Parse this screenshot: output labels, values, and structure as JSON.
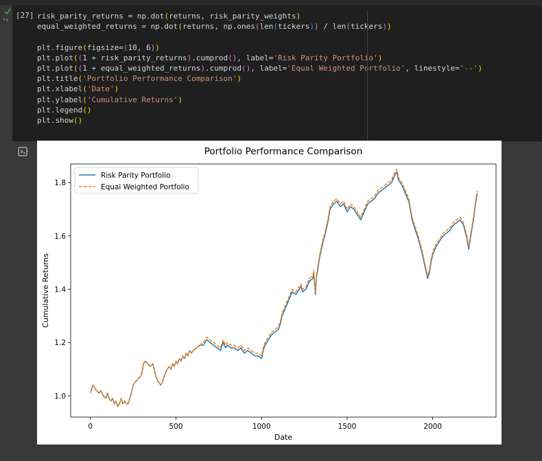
{
  "cell": {
    "execution_count": "[27]",
    "code_lines": [
      [
        {
          "t": "risk_parity_returns = np.dot",
          "c": ""
        },
        {
          "t": "(",
          "c": "p1"
        },
        {
          "t": "returns, risk_parity_weights",
          "c": ""
        },
        {
          "t": ")",
          "c": "p1"
        }
      ],
      [
        {
          "t": "equal_weighted_returns = np.dot",
          "c": ""
        },
        {
          "t": "(",
          "c": "p1"
        },
        {
          "t": "returns, np.ones",
          "c": ""
        },
        {
          "t": "(",
          "c": "p2"
        },
        {
          "t": "len",
          "c": ""
        },
        {
          "t": "(",
          "c": "p3"
        },
        {
          "t": "tickers",
          "c": ""
        },
        {
          "t": ")",
          "c": "p3"
        },
        {
          "t": ")",
          "c": "p2"
        },
        {
          "t": " / len",
          "c": ""
        },
        {
          "t": "(",
          "c": "p2"
        },
        {
          "t": "tickers",
          "c": ""
        },
        {
          "t": ")",
          "c": "p2"
        },
        {
          "t": ")",
          "c": "p1"
        }
      ],
      [],
      [
        {
          "t": "plt.figure",
          "c": ""
        },
        {
          "t": "(",
          "c": "p1"
        },
        {
          "t": "figsize=",
          "c": ""
        },
        {
          "t": "(",
          "c": "p2"
        },
        {
          "t": "10, 6",
          "c": ""
        },
        {
          "t": ")",
          "c": "p2"
        },
        {
          "t": ")",
          "c": "p1"
        }
      ],
      [
        {
          "t": "plt.plot",
          "c": ""
        },
        {
          "t": "(",
          "c": "p1"
        },
        {
          "t": "(",
          "c": "p2"
        },
        {
          "t": "1 + risk_parity_returns",
          "c": ""
        },
        {
          "t": ")",
          "c": "p2"
        },
        {
          "t": ".cumprod",
          "c": ""
        },
        {
          "t": "()",
          "c": "p2"
        },
        {
          "t": ", label=",
          "c": ""
        },
        {
          "t": "'Risk Parity Portfolio'",
          "c": "s"
        },
        {
          "t": ")",
          "c": "p1"
        }
      ],
      [
        {
          "t": "plt.plot",
          "c": ""
        },
        {
          "t": "(",
          "c": "p1"
        },
        {
          "t": "(",
          "c": "p2"
        },
        {
          "t": "1 + equal_weighted_returns",
          "c": ""
        },
        {
          "t": ")",
          "c": "p2"
        },
        {
          "t": ".cumprod",
          "c": ""
        },
        {
          "t": "()",
          "c": "p2"
        },
        {
          "t": ", label=",
          "c": ""
        },
        {
          "t": "'Equal Weighted Portfolio'",
          "c": "s"
        },
        {
          "t": ", linestyle=",
          "c": ""
        },
        {
          "t": "'--'",
          "c": "s"
        },
        {
          "t": ")",
          "c": "p1"
        }
      ],
      [
        {
          "t": "plt.title",
          "c": ""
        },
        {
          "t": "(",
          "c": "p1"
        },
        {
          "t": "'Portfolio Performance Comparison'",
          "c": "s"
        },
        {
          "t": ")",
          "c": "p1"
        }
      ],
      [
        {
          "t": "plt.xlabel",
          "c": ""
        },
        {
          "t": "(",
          "c": "p1"
        },
        {
          "t": "'Date'",
          "c": "s"
        },
        {
          "t": ")",
          "c": "p1"
        }
      ],
      [
        {
          "t": "plt.ylabel",
          "c": ""
        },
        {
          "t": "(",
          "c": "p1"
        },
        {
          "t": "'Cumulative Returns'",
          "c": "s"
        },
        {
          "t": ")",
          "c": "p1"
        }
      ],
      [
        {
          "t": "plt.legend",
          "c": ""
        },
        {
          "t": "()",
          "c": "p1"
        }
      ],
      [
        {
          "t": "plt.show",
          "c": ""
        },
        {
          "t": "()",
          "c": "p1"
        }
      ]
    ]
  },
  "icons": {
    "run_status": "check-icon",
    "output_toggle": "output-toggle-icon"
  },
  "colors": {
    "series_1": "#1f77b4",
    "series_2": "#ff7f0e",
    "code_bg": "#1f1f1f",
    "page_bg": "#383838"
  },
  "chart_data": {
    "type": "line",
    "title": "Portfolio Performance Comparison",
    "xlabel": "Date",
    "ylabel": "Cumulative Returns",
    "xlim": [
      -115,
      2370
    ],
    "ylim": [
      0.92,
      1.87
    ],
    "xticks": [
      0,
      500,
      1000,
      1500,
      2000
    ],
    "yticks": [
      1.0,
      1.2,
      1.4,
      1.6,
      1.8
    ],
    "legend_position": "upper-left",
    "grid": false,
    "series": [
      {
        "name": "Risk Parity Portfolio",
        "style": "solid",
        "x": [
          0,
          15,
          25,
          35,
          50,
          60,
          75,
          90,
          100,
          110,
          120,
          130,
          140,
          150,
          160,
          170,
          180,
          190,
          200,
          210,
          220,
          230,
          240,
          250,
          260,
          275,
          290,
          300,
          310,
          320,
          335,
          350,
          365,
          380,
          390,
          400,
          410,
          420,
          430,
          440,
          450,
          460,
          470,
          480,
          490,
          500,
          510,
          520,
          530,
          540,
          550,
          560,
          570,
          580,
          590,
          600,
          620,
          640,
          660,
          680,
          700,
          720,
          740,
          760,
          775,
          790,
          800,
          820,
          840,
          860,
          880,
          900,
          920,
          940,
          960,
          980,
          1000,
          1010,
          1020,
          1030,
          1040,
          1050,
          1060,
          1080,
          1100,
          1110,
          1120,
          1140,
          1160,
          1180,
          1200,
          1220,
          1230,
          1240,
          1260,
          1280,
          1300,
          1305,
          1310,
          1315,
          1320,
          1330,
          1340,
          1350,
          1360,
          1370,
          1380,
          1390,
          1400,
          1420,
          1440,
          1460,
          1480,
          1500,
          1520,
          1540,
          1560,
          1580,
          1600,
          1620,
          1640,
          1660,
          1680,
          1700,
          1720,
          1740,
          1760,
          1780,
          1790,
          1800,
          1820,
          1840,
          1860,
          1880,
          1900,
          1920,
          1940,
          1960,
          1970,
          1980,
          1990,
          2000,
          2020,
          2040,
          2060,
          2080,
          2100,
          2120,
          2140,
          2160,
          2180,
          2200,
          2210,
          2220,
          2230,
          2240,
          2250,
          2260
        ],
        "y": [
          1.01,
          1.04,
          1.03,
          1.02,
          1.01,
          1.02,
          1.0,
          0.99,
          1.01,
          0.99,
          0.98,
          0.99,
          0.97,
          0.98,
          0.96,
          0.97,
          0.99,
          0.97,
          0.98,
          0.97,
          0.97,
          0.99,
          1.01,
          1.04,
          1.05,
          1.06,
          1.07,
          1.08,
          1.12,
          1.13,
          1.12,
          1.11,
          1.12,
          1.08,
          1.06,
          1.05,
          1.04,
          1.05,
          1.07,
          1.09,
          1.1,
          1.11,
          1.1,
          1.12,
          1.11,
          1.13,
          1.12,
          1.14,
          1.13,
          1.15,
          1.14,
          1.16,
          1.15,
          1.17,
          1.16,
          1.17,
          1.18,
          1.19,
          1.19,
          1.21,
          1.2,
          1.19,
          1.18,
          1.17,
          1.2,
          1.18,
          1.19,
          1.18,
          1.18,
          1.17,
          1.18,
          1.16,
          1.17,
          1.16,
          1.15,
          1.15,
          1.14,
          1.17,
          1.19,
          1.2,
          1.21,
          1.22,
          1.23,
          1.24,
          1.25,
          1.27,
          1.3,
          1.33,
          1.36,
          1.39,
          1.38,
          1.4,
          1.41,
          1.39,
          1.4,
          1.43,
          1.44,
          1.46,
          1.42,
          1.38,
          1.44,
          1.48,
          1.52,
          1.55,
          1.58,
          1.6,
          1.63,
          1.66,
          1.7,
          1.72,
          1.73,
          1.71,
          1.72,
          1.69,
          1.71,
          1.7,
          1.68,
          1.66,
          1.69,
          1.72,
          1.73,
          1.74,
          1.76,
          1.77,
          1.78,
          1.79,
          1.8,
          1.83,
          1.84,
          1.81,
          1.79,
          1.76,
          1.73,
          1.66,
          1.62,
          1.58,
          1.53,
          1.47,
          1.44,
          1.46,
          1.5,
          1.53,
          1.56,
          1.58,
          1.6,
          1.61,
          1.62,
          1.64,
          1.65,
          1.66,
          1.64,
          1.59,
          1.55,
          1.59,
          1.63,
          1.67,
          1.72,
          1.76
        ]
      },
      {
        "name": "Equal Weighted Portfolio",
        "style": "dashed",
        "x": [
          0,
          15,
          25,
          35,
          50,
          60,
          75,
          90,
          100,
          110,
          120,
          130,
          140,
          150,
          160,
          170,
          180,
          190,
          200,
          210,
          220,
          230,
          240,
          250,
          260,
          275,
          290,
          300,
          310,
          320,
          335,
          350,
          365,
          380,
          390,
          400,
          410,
          420,
          430,
          440,
          450,
          460,
          470,
          480,
          490,
          500,
          510,
          520,
          530,
          540,
          550,
          560,
          570,
          580,
          590,
          600,
          620,
          640,
          660,
          680,
          700,
          720,
          740,
          760,
          775,
          790,
          800,
          820,
          840,
          860,
          880,
          900,
          920,
          940,
          960,
          980,
          1000,
          1010,
          1020,
          1030,
          1040,
          1050,
          1060,
          1080,
          1100,
          1110,
          1120,
          1140,
          1160,
          1180,
          1200,
          1220,
          1230,
          1240,
          1260,
          1280,
          1300,
          1305,
          1310,
          1315,
          1320,
          1330,
          1340,
          1350,
          1360,
          1370,
          1380,
          1390,
          1400,
          1420,
          1440,
          1460,
          1480,
          1500,
          1520,
          1540,
          1560,
          1580,
          1600,
          1620,
          1640,
          1660,
          1680,
          1700,
          1720,
          1740,
          1760,
          1780,
          1790,
          1800,
          1820,
          1840,
          1860,
          1880,
          1900,
          1920,
          1940,
          1960,
          1970,
          1980,
          1990,
          2000,
          2020,
          2040,
          2060,
          2080,
          2100,
          2120,
          2140,
          2160,
          2180,
          2200,
          2210,
          2220,
          2230,
          2240,
          2250,
          2260
        ],
        "y": [
          1.01,
          1.04,
          1.03,
          1.02,
          1.01,
          1.02,
          1.0,
          0.99,
          1.01,
          0.99,
          0.98,
          0.99,
          0.97,
          0.98,
          0.96,
          0.97,
          0.99,
          0.97,
          0.98,
          0.97,
          0.97,
          0.99,
          1.01,
          1.04,
          1.05,
          1.06,
          1.07,
          1.08,
          1.12,
          1.13,
          1.12,
          1.11,
          1.12,
          1.08,
          1.06,
          1.05,
          1.04,
          1.05,
          1.07,
          1.09,
          1.1,
          1.11,
          1.1,
          1.12,
          1.11,
          1.13,
          1.12,
          1.14,
          1.13,
          1.15,
          1.14,
          1.16,
          1.15,
          1.17,
          1.16,
          1.17,
          1.18,
          1.19,
          1.2,
          1.22,
          1.21,
          1.2,
          1.19,
          1.18,
          1.21,
          1.19,
          1.2,
          1.19,
          1.19,
          1.18,
          1.19,
          1.17,
          1.18,
          1.17,
          1.16,
          1.16,
          1.15,
          1.18,
          1.2,
          1.21,
          1.22,
          1.23,
          1.24,
          1.25,
          1.26,
          1.28,
          1.31,
          1.34,
          1.37,
          1.4,
          1.39,
          1.41,
          1.42,
          1.4,
          1.41,
          1.44,
          1.45,
          1.47,
          1.43,
          1.39,
          1.45,
          1.49,
          1.53,
          1.56,
          1.59,
          1.61,
          1.64,
          1.67,
          1.71,
          1.73,
          1.74,
          1.72,
          1.73,
          1.7,
          1.72,
          1.71,
          1.69,
          1.67,
          1.7,
          1.73,
          1.74,
          1.75,
          1.77,
          1.78,
          1.79,
          1.8,
          1.81,
          1.84,
          1.85,
          1.82,
          1.8,
          1.77,
          1.74,
          1.67,
          1.63,
          1.59,
          1.54,
          1.48,
          1.45,
          1.47,
          1.51,
          1.54,
          1.57,
          1.59,
          1.61,
          1.62,
          1.63,
          1.65,
          1.66,
          1.67,
          1.65,
          1.6,
          1.56,
          1.6,
          1.64,
          1.68,
          1.73,
          1.77
        ]
      }
    ]
  }
}
